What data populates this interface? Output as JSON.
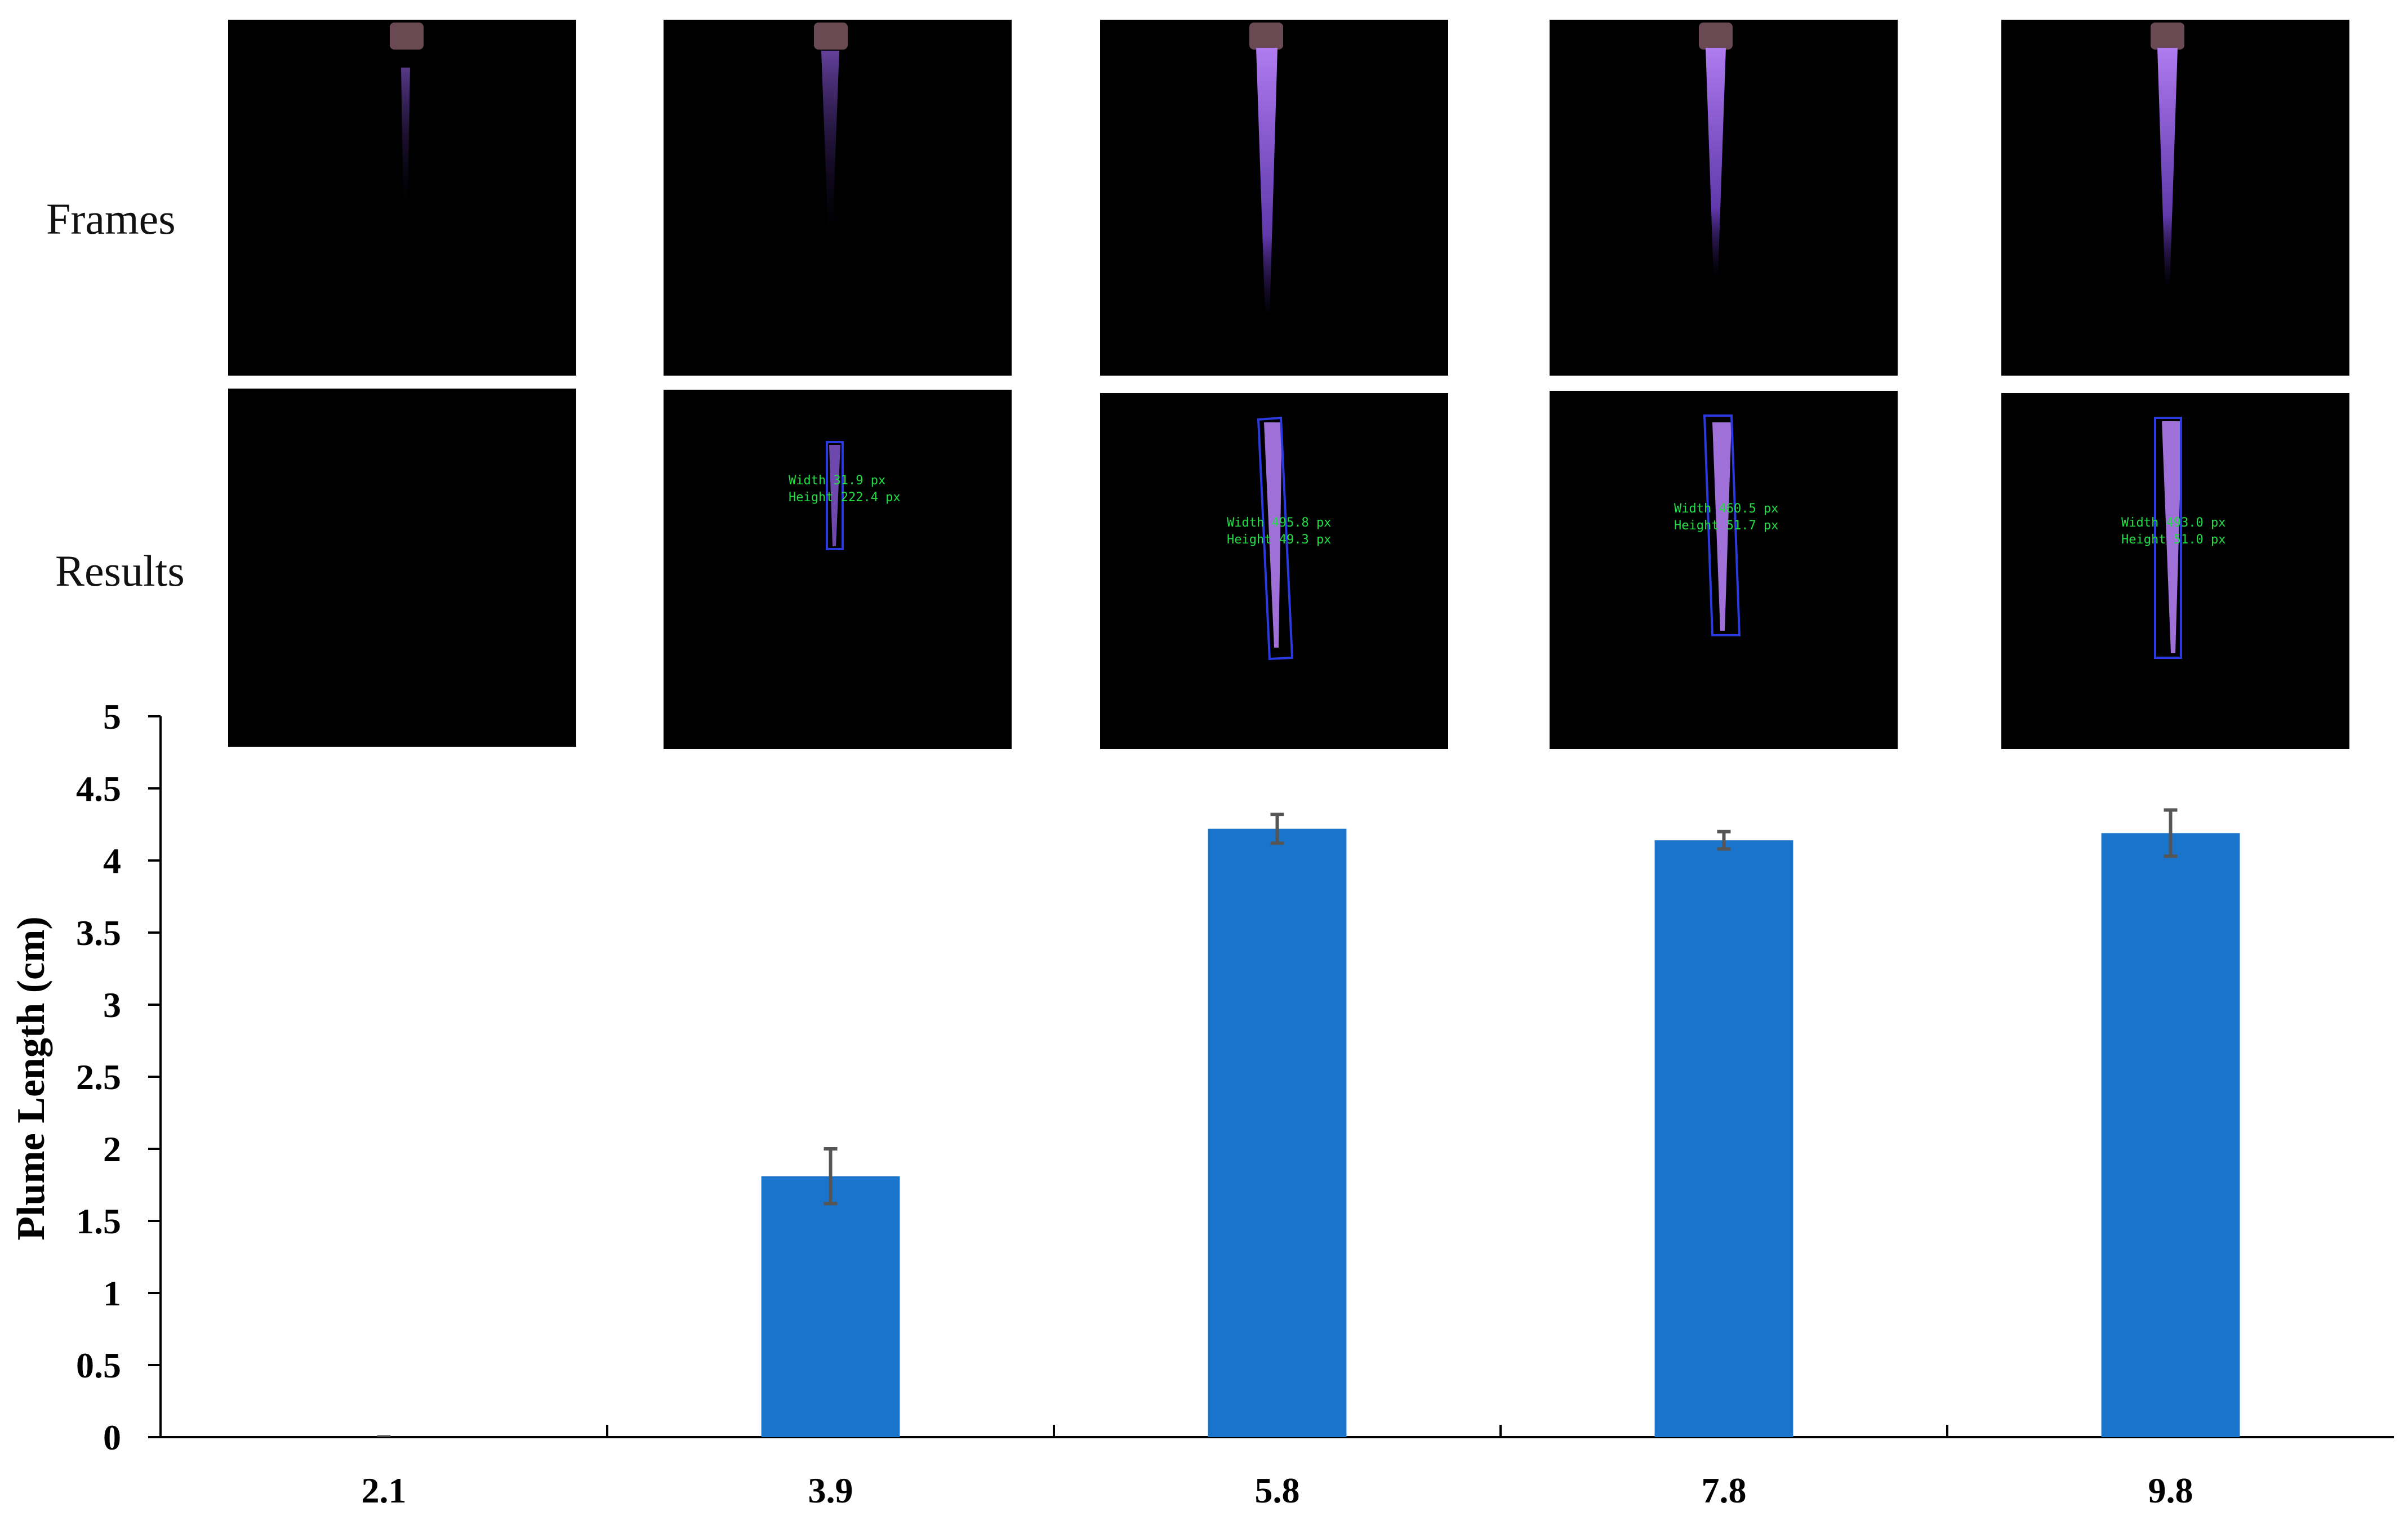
{
  "panels": {
    "frames_label": "Frames",
    "results_label": "Results",
    "result_annotations": [
      null,
      {
        "width": "Width 31.9 px",
        "height": "Height 222.4 px"
      },
      {
        "width": "Width 495.8 px",
        "height": "Height 49.3 px"
      },
      {
        "width": "Width 460.5 px",
        "height": "Height 51.7 px"
      },
      {
        "width": "Width 493.0 px",
        "height": "Height 51.0 px"
      }
    ]
  },
  "chart_data": {
    "type": "bar",
    "categories": [
      "2.1",
      "3.9",
      "5.8",
      "7.8",
      "9.8"
    ],
    "values": [
      0.0,
      1.81,
      4.22,
      4.14,
      4.19
    ],
    "errors": [
      0.0,
      0.19,
      0.1,
      0.06,
      0.16
    ],
    "ylabel": "Plume Length (cm)",
    "xlabel": "",
    "ylim": [
      0,
      5
    ],
    "yticks": [
      "0",
      "0.5",
      "1",
      "1.5",
      "2",
      "2.5",
      "3",
      "3.5",
      "4",
      "4.5",
      "5"
    ],
    "bar_color": "#1a74cc",
    "error_color": "#555555",
    "grid": false
  }
}
